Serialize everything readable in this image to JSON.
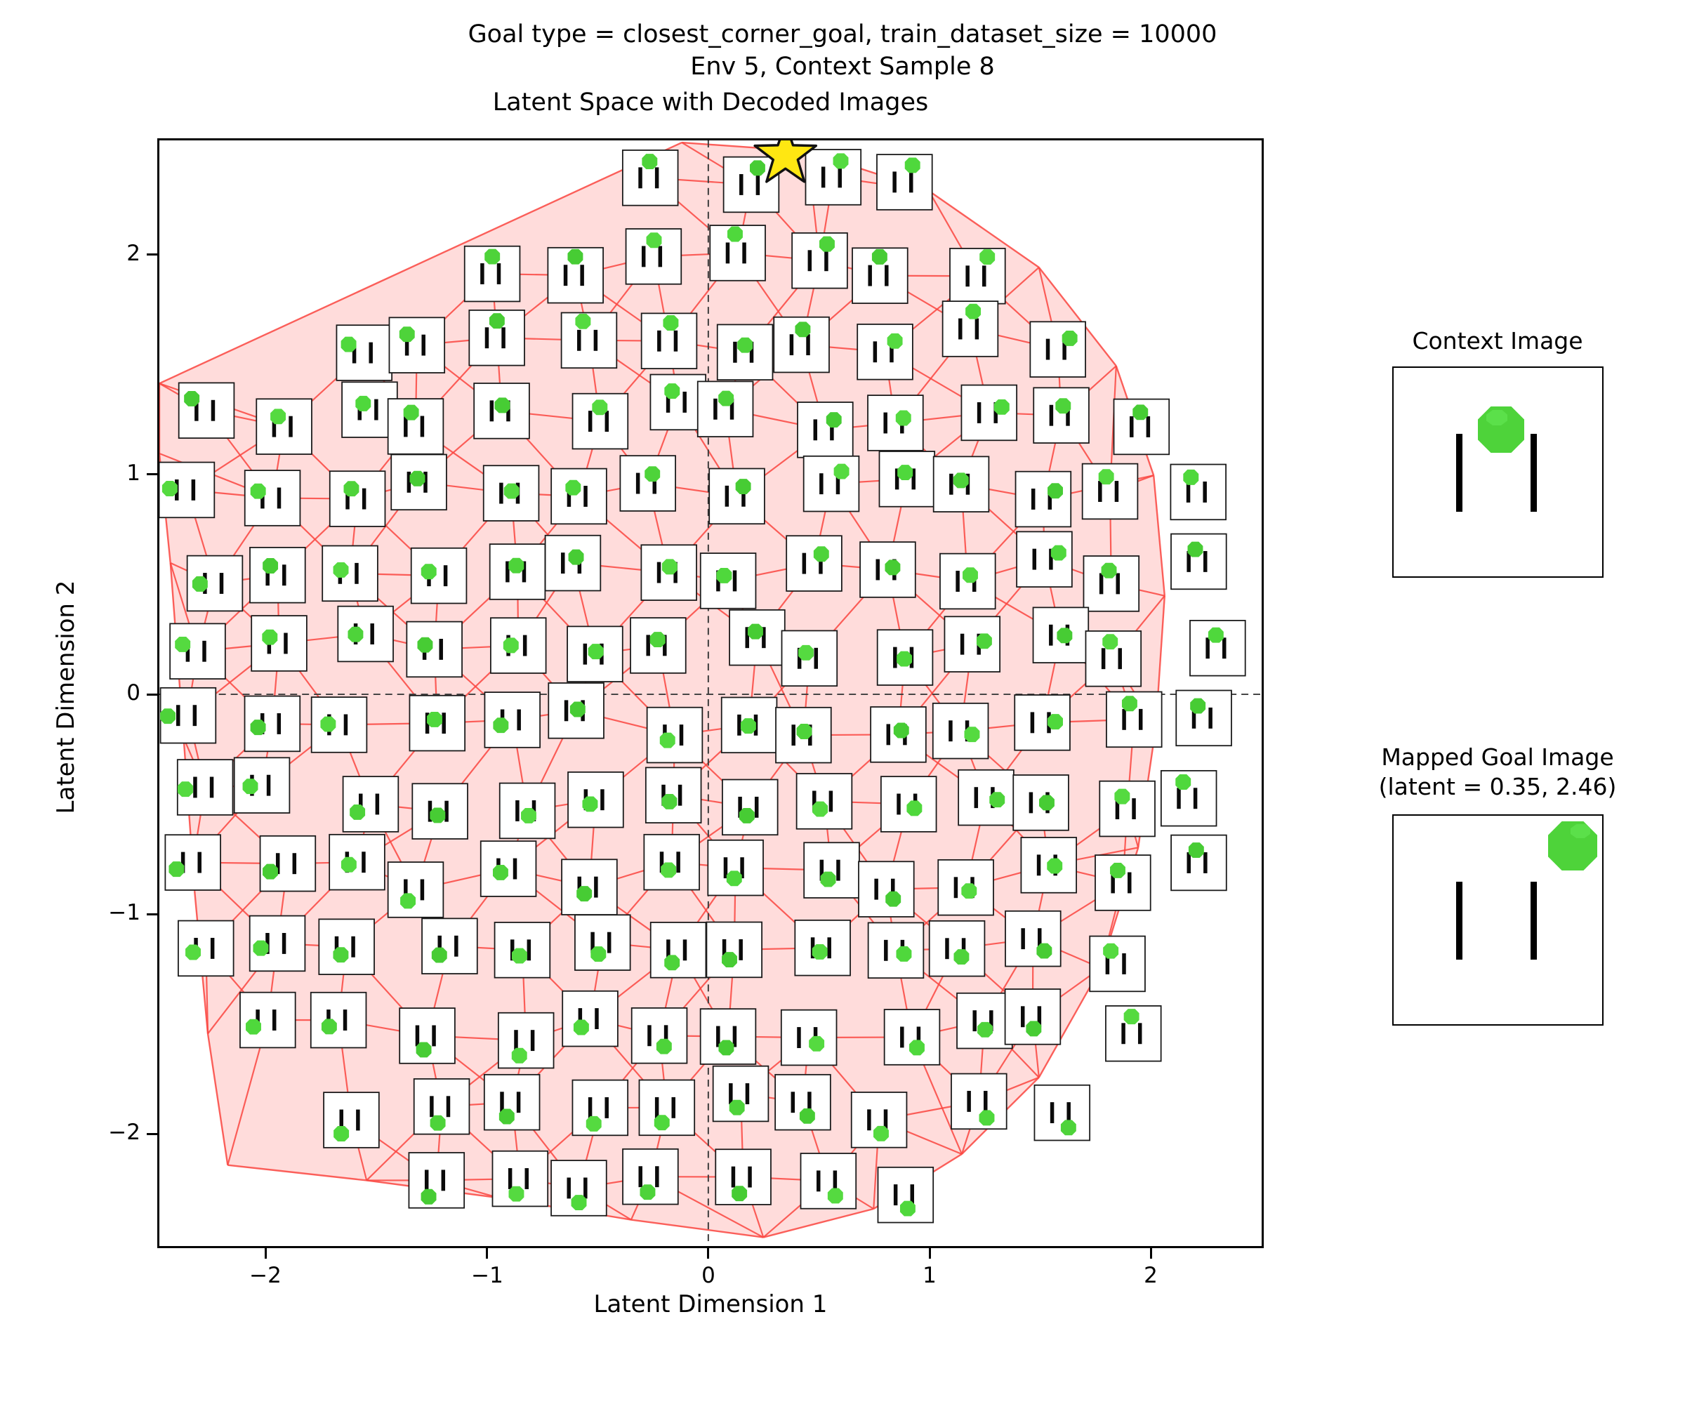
{
  "figure": {
    "suptitle_line1": "Goal type = closest_corner_goal, train_dataset_size = 10000",
    "suptitle_line2": "Env 5, Context Sample 8"
  },
  "chart_data": {
    "type": "scatter",
    "title": "Latent Space with Decoded Images",
    "xlabel": "Latent Dimension 1",
    "ylabel": "Latent Dimension 2",
    "xlim": [
      -2.49,
      2.51
    ],
    "ylim": [
      -2.52,
      2.53
    ],
    "xticks": [
      -2,
      -1,
      0,
      1,
      2
    ],
    "yticks": [
      -2,
      -1,
      0,
      1,
      2
    ],
    "xtick_labels": [
      "−2",
      "−1",
      "0",
      "1",
      "2"
    ],
    "ytick_labels": [
      "−2",
      "−1",
      "0",
      "1",
      "2"
    ],
    "grid": false,
    "crosshair": {
      "x": 0,
      "y": 0,
      "style": "dashed",
      "color": "#3c3c3c"
    },
    "goal_star": {
      "x": 0.35,
      "y": 2.46,
      "fill": "#ffe712",
      "edge": "#111111"
    },
    "mesh_hull": [
      [
        -2.49,
        1.42
      ],
      [
        -0.12,
        2.52
      ],
      [
        0.45,
        2.48
      ],
      [
        1.0,
        2.3
      ],
      [
        1.5,
        1.95
      ],
      [
        1.85,
        1.5
      ],
      [
        2.02,
        1.0
      ],
      [
        2.07,
        0.45
      ],
      [
        2.03,
        -0.15
      ],
      [
        1.95,
        -0.7
      ],
      [
        1.78,
        -1.25
      ],
      [
        1.5,
        -1.75
      ],
      [
        1.15,
        -2.1
      ],
      [
        0.75,
        -2.35
      ],
      [
        0.25,
        -2.48
      ],
      [
        -0.35,
        -2.4
      ],
      [
        -0.95,
        -2.3
      ],
      [
        -1.55,
        -2.22
      ],
      [
        -2.18,
        -2.15
      ],
      [
        -2.27,
        -1.55
      ],
      [
        -2.33,
        -0.9
      ],
      [
        -2.38,
        -0.2
      ],
      [
        -2.44,
        0.6
      ],
      [
        -2.49,
        1.1
      ]
    ],
    "thumbnail_grid": {
      "note": "decoded image thumbnails at approximate latent positions; each shows two vertical bars with a green ball whose position tracks the latent coordinate",
      "thumb_size_latent": 0.25,
      "rows": [
        {
          "y": 2.32,
          "xs": [
            -0.2,
            0.15,
            0.5,
            0.85
          ]
        },
        {
          "y": 1.97,
          "xs": [
            -1.05,
            -0.55,
            -0.2,
            0.15,
            0.5,
            0.85,
            1.2
          ]
        },
        {
          "y": 1.62,
          "xs": [
            -1.6,
            -1.25,
            -0.9,
            -0.55,
            -0.2,
            0.15,
            0.5,
            0.85,
            1.2,
            1.55
          ]
        },
        {
          "y": 1.27,
          "xs": [
            -2.3,
            -1.95,
            -1.6,
            -1.25,
            -0.9,
            -0.55,
            -0.2,
            0.15,
            0.5,
            0.85,
            1.2,
            1.55,
            1.9
          ]
        },
        {
          "y": 0.92,
          "xs": [
            -2.3,
            -1.95,
            -1.6,
            -1.25,
            -0.9,
            -0.55,
            -0.2,
            0.15,
            0.5,
            0.85,
            1.2,
            1.55,
            1.9,
            2.25
          ]
        },
        {
          "y": 0.57,
          "xs": [
            -2.3,
            -1.95,
            -1.6,
            -1.25,
            -0.9,
            -0.55,
            -0.2,
            0.15,
            0.5,
            0.85,
            1.2,
            1.55,
            1.9,
            2.25
          ]
        },
        {
          "y": 0.22,
          "xs": [
            -2.3,
            -1.95,
            -1.6,
            -1.25,
            -0.9,
            -0.55,
            -0.2,
            0.15,
            0.5,
            0.85,
            1.2,
            1.55,
            1.9,
            2.25
          ]
        },
        {
          "y": -0.13,
          "xs": [
            -2.3,
            -1.95,
            -1.6,
            -1.25,
            -0.9,
            -0.55,
            -0.2,
            0.15,
            0.5,
            0.85,
            1.2,
            1.55,
            1.9,
            2.25
          ]
        },
        {
          "y": -0.48,
          "xs": [
            -2.3,
            -1.95,
            -1.6,
            -1.25,
            -0.9,
            -0.55,
            -0.2,
            0.15,
            0.5,
            0.85,
            1.2,
            1.55,
            1.9,
            2.25
          ]
        },
        {
          "y": -0.83,
          "xs": [
            -2.3,
            -1.95,
            -1.6,
            -1.25,
            -0.9,
            -0.55,
            -0.2,
            0.15,
            0.5,
            0.85,
            1.2,
            1.55,
            1.9,
            2.25
          ]
        },
        {
          "y": -1.18,
          "xs": [
            -2.3,
            -1.95,
            -1.6,
            -1.25,
            -0.9,
            -0.55,
            -0.2,
            0.15,
            0.5,
            0.85,
            1.2,
            1.55,
            1.9
          ]
        },
        {
          "y": -1.53,
          "xs": [
            -1.95,
            -1.6,
            -1.25,
            -0.9,
            -0.55,
            -0.2,
            0.15,
            0.5,
            0.85,
            1.2,
            1.55,
            1.9
          ]
        },
        {
          "y": -1.88,
          "xs": [
            -1.6,
            -1.25,
            -0.9,
            -0.55,
            -0.2,
            0.15,
            0.5,
            0.85,
            1.2,
            1.55
          ]
        },
        {
          "y": -2.23,
          "xs": [
            -1.25,
            -0.9,
            -0.55,
            -0.2,
            0.15,
            0.5,
            0.85
          ]
        }
      ]
    }
  },
  "context_panel": {
    "title": "Context Image",
    "image": {
      "bar_count": 2,
      "ball_color": "#4ed33a",
      "ball_position": "top-center between the bars"
    }
  },
  "goal_panel": {
    "title_line1": "Mapped Goal Image",
    "title_line2": "(latent = 0.35, 2.46)",
    "latent": [
      0.35,
      2.46
    ],
    "image": {
      "bar_count": 2,
      "ball_color": "#4ed33a",
      "ball_position": "top-right corner"
    }
  },
  "colors": {
    "mesh_line": "#fa453f",
    "mesh_fill": "rgba(255,45,40,0.17)",
    "thumb_border": "#1a1a1a",
    "bar_color": "#0a0a0a",
    "ball_green": "#4ed33a",
    "star_fill": "#ffe712",
    "crosshair": "#3c3c3c"
  }
}
